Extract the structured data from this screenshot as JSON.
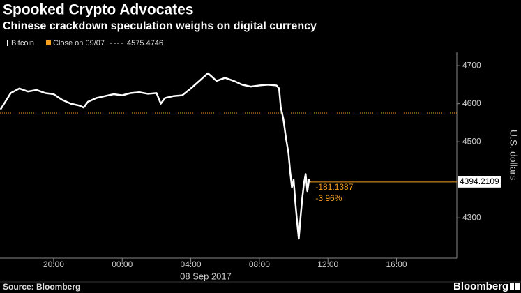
{
  "chart_data": {
    "type": "line",
    "title": "Spooked Crypto Advocates",
    "subtitle": "Chinese crackdown speculation weighs on digital currency",
    "x": [
      -7.1,
      -6.75,
      -6.5,
      -6.0,
      -5.5,
      -5.0,
      -4.5,
      -4.0,
      -3.5,
      -3.0,
      -2.5,
      -2.25,
      -2.0,
      -1.5,
      -1.0,
      -0.5,
      0,
      0.5,
      1.0,
      1.5,
      2.0,
      2.25,
      2.5,
      3.0,
      3.5,
      4.0,
      4.5,
      5.0,
      5.5,
      6.0,
      6.5,
      7.0,
      7.5,
      8.0,
      8.5,
      9.0,
      9.15,
      9.25,
      9.4,
      9.55,
      9.7,
      9.8,
      9.9,
      10.0,
      10.1,
      10.2,
      10.3,
      10.4,
      10.5,
      10.6,
      10.7,
      10.8,
      10.9,
      10.95
    ],
    "series": [
      {
        "name": "Bitcoin",
        "color": "#ffffff",
        "values": [
          4585,
          4610,
          4628,
          4640,
          4632,
          4636,
          4628,
          4625,
          4610,
          4600,
          4595,
          4590,
          4605,
          4615,
          4620,
          4625,
          4622,
          4628,
          4630,
          4626,
          4628,
          4600,
          4615,
          4620,
          4622,
          4640,
          4660,
          4680,
          4660,
          4668,
          4660,
          4650,
          4645,
          4648,
          4650,
          4648,
          4640,
          4590,
          4560,
          4510,
          4470,
          4420,
          4380,
          4400,
          4340,
          4290,
          4245,
          4300,
          4350,
          4390,
          4415,
          4370,
          4400,
          4394.2109
        ]
      }
    ],
    "reference_line": {
      "name": "Close on 09/07",
      "value": 4575.4746,
      "color": "#f5a020"
    },
    "change": -181.1387,
    "change_pct": {
      "value": -3.96,
      "label": "-3.96%"
    },
    "y_label": "U.S. dollars",
    "x_label": "08 Sep 2017",
    "xlim": [
      -7.13,
      19.52
    ],
    "xticks": [
      {
        "value": -4,
        "label": "20:00"
      },
      {
        "value": 0,
        "label": "00:00"
      },
      {
        "value": 4,
        "label": "04:00"
      },
      {
        "value": 8,
        "label": "08:00"
      },
      {
        "value": 12,
        "label": "12:00"
      },
      {
        "value": 16,
        "label": "16:00"
      }
    ],
    "ylim": [
      4194,
      4735
    ],
    "yticks": [
      4300,
      4500,
      4600,
      4700
    ],
    "source": "Source: Bloomberg",
    "brand": "Bloomberg"
  }
}
